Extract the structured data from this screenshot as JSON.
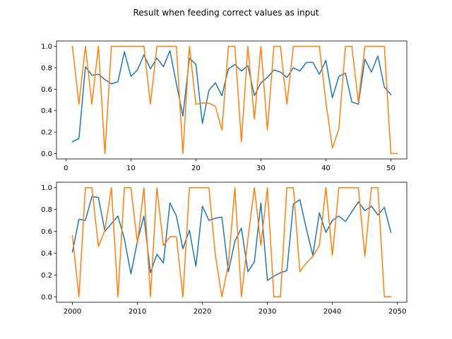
{
  "title": "Result when feeding correct values as input",
  "colors": {
    "series_blue": "#1f77b4",
    "series_orange": "#ff7f0e"
  },
  "chart_data": [
    {
      "type": "line",
      "xlim": [
        -1.45,
        52.45
      ],
      "ylim": [
        -0.05,
        1.05
      ],
      "xticks": [
        0,
        10,
        20,
        30,
        40,
        50
      ],
      "yticks": [
        0.0,
        0.2,
        0.4,
        0.6,
        0.8,
        1.0
      ],
      "xtick_labels": [
        "0",
        "10",
        "20",
        "30",
        "40",
        "50"
      ],
      "ytick_labels": [
        "0.0",
        "0.2",
        "0.4",
        "0.6",
        "0.8",
        "1.0"
      ],
      "x_start": 1,
      "series": [
        {
          "color": "#1f77b4",
          "values": [
            0.11,
            0.14,
            0.81,
            0.73,
            0.74,
            0.69,
            0.65,
            0.67,
            0.95,
            0.72,
            0.78,
            0.92,
            0.79,
            0.89,
            0.81,
            0.96,
            0.65,
            0.35,
            0.89,
            0.83,
            0.28,
            0.59,
            0.66,
            0.54,
            0.79,
            0.83,
            0.77,
            0.82,
            0.54,
            0.66,
            0.71,
            0.78,
            0.76,
            0.71,
            0.8,
            0.77,
            0.85,
            0.85,
            0.74,
            0.87,
            0.52,
            0.72,
            0.75,
            0.48,
            0.46,
            0.88,
            0.76,
            0.91,
            0.62,
            0.55
          ]
        },
        {
          "color": "#ff7f0e",
          "values": [
            1.0,
            0.46,
            1.0,
            0.46,
            1.0,
            0.0,
            1.0,
            1.0,
            1.0,
            1.0,
            1.0,
            1.0,
            0.46,
            1.0,
            1.0,
            1.0,
            1.0,
            0.0,
            1.0,
            0.46,
            0.47,
            0.47,
            0.44,
            0.22,
            1.0,
            1.0,
            0.11,
            1.0,
            0.32,
            1.0,
            0.22,
            1.0,
            1.0,
            0.46,
            1.0,
            1.0,
            1.0,
            1.0,
            1.0,
            0.48,
            0.05,
            0.23,
            1.0,
            1.0,
            0.48,
            1.0,
            1.0,
            1.0,
            1.0,
            0.0,
            0.0
          ]
        }
      ]
    },
    {
      "type": "line",
      "xlim": [
        1997.55,
        2051.45
      ],
      "ylim": [
        -0.05,
        1.05
      ],
      "xticks": [
        2000,
        2010,
        2020,
        2030,
        2040,
        2050
      ],
      "yticks": [
        0.0,
        0.2,
        0.4,
        0.6,
        0.8,
        1.0
      ],
      "xtick_labels": [
        "2000",
        "2010",
        "2020",
        "2030",
        "2040",
        "2050"
      ],
      "ytick_labels": [
        "0.0",
        "0.2",
        "0.4",
        "0.6",
        "0.8",
        "1.0"
      ],
      "x_start": 2000,
      "series": [
        {
          "color": "#1f77b4",
          "values": [
            0.41,
            0.71,
            0.7,
            0.92,
            0.91,
            0.6,
            0.67,
            0.74,
            0.53,
            0.21,
            0.51,
            0.74,
            0.22,
            0.39,
            0.31,
            0.86,
            0.74,
            0.44,
            0.61,
            0.28,
            0.83,
            0.7,
            0.72,
            0.73,
            0.23,
            0.51,
            0.63,
            0.23,
            0.32,
            0.86,
            0.15,
            0.19,
            0.22,
            0.24,
            0.85,
            0.89,
            0.62,
            0.38,
            0.77,
            0.59,
            0.7,
            0.74,
            0.69,
            0.78,
            0.87,
            0.79,
            0.83,
            0.75,
            0.82,
            0.59
          ]
        },
        {
          "color": "#ff7f0e",
          "values": [
            0.56,
            0.0,
            1.0,
            1.0,
            0.46,
            0.61,
            1.0,
            0.0,
            1.0,
            1.0,
            0.49,
            1.0,
            0.0,
            1.0,
            0.47,
            0.55,
            0.55,
            0.0,
            1.0,
            1.0,
            1.0,
            1.0,
            0.38,
            0.0,
            0.3,
            1.0,
            0.0,
            0.53,
            1.0,
            0.47,
            1.0,
            0.0,
            0.0,
            1.0,
            1.0,
            0.23,
            0.31,
            0.37,
            0.47,
            1.0,
            0.38,
            1.0,
            1.0,
            1.0,
            1.0,
            0.37,
            1.0,
            1.0,
            0.0,
            0.0
          ]
        }
      ]
    }
  ]
}
